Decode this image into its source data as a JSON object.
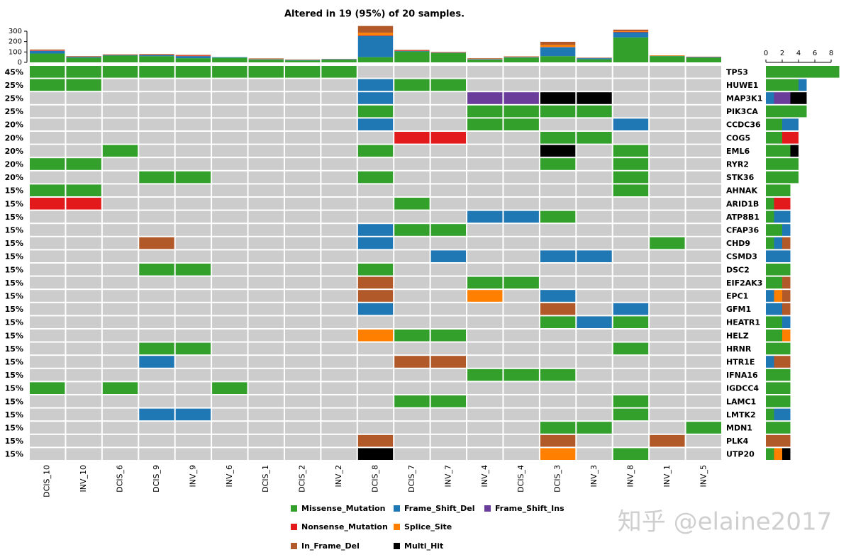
{
  "chart_data": {
    "type": "oncoplot",
    "title": "Altered in 19 (95%) of 20 samples.",
    "samples": [
      "DCIS_10",
      "INV_10",
      "DCIS_6",
      "DCIS_9",
      "INV_9",
      "INV_6",
      "DCIS_1",
      "DCIS_2",
      "INV_2",
      "DCIS_8",
      "DCIS_7",
      "INV_7",
      "INV_4",
      "DCIS_4",
      "DCIS_3",
      "INV_3",
      "INV_8",
      "INV_1",
      "INV_5"
    ],
    "genes": [
      "TP53",
      "HUWE1",
      "MAP3K1",
      "PIK3CA",
      "CCDC36",
      "COG5",
      "EML6",
      "RYR2",
      "STK36",
      "AHNAK",
      "ARID1B",
      "ATP8B1",
      "CFAP36",
      "CHD9",
      "CSMD3",
      "DSC2",
      "EIF2AK3",
      "EPC1",
      "GFM1",
      "HEATR1",
      "HELZ",
      "HRNR",
      "HTR1E",
      "IFNA16",
      "IGDCC4",
      "LAMC1",
      "LMTK2",
      "MDN1",
      "PLK4",
      "UTP20"
    ],
    "gene_percent": [
      45,
      25,
      25,
      25,
      20,
      20,
      20,
      20,
      20,
      15,
      15,
      15,
      15,
      15,
      15,
      15,
      15,
      15,
      15,
      15,
      15,
      15,
      15,
      15,
      15,
      15,
      15,
      15,
      15,
      15
    ],
    "gene_percent_labels": [
      "45%",
      "25%",
      "25%",
      "25%",
      "20%",
      "20%",
      "20%",
      "20%",
      "20%",
      "15%",
      "15%",
      "15%",
      "15%",
      "15%",
      "15%",
      "15%",
      "15%",
      "15%",
      "15%",
      "15%",
      "15%",
      "15%",
      "15%",
      "15%",
      "15%",
      "15%",
      "15%",
      "15%",
      "15%",
      "15%"
    ],
    "variant_types": [
      {
        "name": "Missense_Mutation",
        "color": "#33a02c"
      },
      {
        "name": "Frame_Shift_Del",
        "color": "#1f78b4"
      },
      {
        "name": "Frame_Shift_Ins",
        "color": "#6a3d9a"
      },
      {
        "name": "Nonsense_Mutation",
        "color": "#e31a1c"
      },
      {
        "name": "Splice_Site",
        "color": "#ff7f00"
      },
      {
        "name": "In_Frame_Del",
        "color": "#b15928"
      },
      {
        "name": "Multi_Hit",
        "color": "#000000"
      }
    ],
    "empty_color": "#cccccc",
    "matrix": [
      [
        0,
        0,
        0,
        0,
        0,
        0,
        0,
        0,
        0,
        null,
        null,
        null,
        null,
        null,
        null,
        null,
        null,
        null,
        null
      ],
      [
        0,
        0,
        null,
        null,
        null,
        null,
        null,
        null,
        null,
        1,
        0,
        0,
        null,
        null,
        null,
        null,
        null,
        null,
        null
      ],
      [
        null,
        null,
        null,
        null,
        null,
        null,
        null,
        null,
        null,
        1,
        null,
        null,
        2,
        2,
        6,
        6,
        null,
        null,
        null
      ],
      [
        null,
        null,
        null,
        null,
        null,
        null,
        null,
        null,
        null,
        0,
        null,
        null,
        0,
        0,
        0,
        0,
        null,
        null,
        null
      ],
      [
        null,
        null,
        null,
        null,
        null,
        null,
        null,
        null,
        null,
        1,
        null,
        null,
        0,
        0,
        null,
        null,
        1,
        null,
        null
      ],
      [
        null,
        null,
        null,
        null,
        null,
        null,
        null,
        null,
        null,
        null,
        3,
        3,
        null,
        null,
        0,
        0,
        null,
        null,
        null
      ],
      [
        null,
        null,
        0,
        null,
        null,
        null,
        null,
        null,
        null,
        0,
        null,
        null,
        null,
        null,
        6,
        null,
        0,
        null,
        null
      ],
      [
        0,
        0,
        null,
        null,
        null,
        null,
        null,
        null,
        null,
        null,
        null,
        null,
        null,
        null,
        0,
        null,
        0,
        null,
        null
      ],
      [
        null,
        null,
        null,
        0,
        0,
        null,
        null,
        null,
        null,
        0,
        null,
        null,
        null,
        null,
        null,
        null,
        0,
        null,
        null
      ],
      [
        0,
        0,
        null,
        null,
        null,
        null,
        null,
        null,
        null,
        null,
        null,
        null,
        null,
        null,
        null,
        null,
        0,
        null,
        null
      ],
      [
        3,
        3,
        null,
        null,
        null,
        null,
        null,
        null,
        null,
        null,
        0,
        null,
        null,
        null,
        null,
        null,
        null,
        null,
        null
      ],
      [
        null,
        null,
        null,
        null,
        null,
        null,
        null,
        null,
        null,
        null,
        null,
        null,
        1,
        1,
        0,
        null,
        null,
        null,
        null
      ],
      [
        null,
        null,
        null,
        null,
        null,
        null,
        null,
        null,
        null,
        1,
        0,
        0,
        null,
        null,
        null,
        null,
        null,
        null,
        null
      ],
      [
        null,
        null,
        null,
        5,
        null,
        null,
        null,
        null,
        null,
        1,
        null,
        null,
        null,
        null,
        null,
        null,
        null,
        0,
        null
      ],
      [
        null,
        null,
        null,
        null,
        null,
        null,
        null,
        null,
        null,
        null,
        null,
        1,
        null,
        null,
        1,
        1,
        null,
        null,
        null
      ],
      [
        null,
        null,
        null,
        0,
        0,
        null,
        null,
        null,
        null,
        0,
        null,
        null,
        null,
        null,
        null,
        null,
        null,
        null,
        null
      ],
      [
        null,
        null,
        null,
        null,
        null,
        null,
        null,
        null,
        null,
        5,
        null,
        null,
        0,
        0,
        null,
        null,
        null,
        null,
        null
      ],
      [
        null,
        null,
        null,
        null,
        null,
        null,
        null,
        null,
        null,
        5,
        null,
        null,
        4,
        null,
        1,
        null,
        null,
        null,
        null
      ],
      [
        null,
        null,
        null,
        null,
        null,
        null,
        null,
        null,
        null,
        1,
        null,
        null,
        null,
        null,
        5,
        null,
        1,
        null,
        null
      ],
      [
        null,
        null,
        null,
        null,
        null,
        null,
        null,
        null,
        null,
        null,
        null,
        null,
        null,
        null,
        0,
        1,
        0,
        null,
        null
      ],
      [
        null,
        null,
        null,
        null,
        null,
        null,
        null,
        null,
        null,
        4,
        0,
        0,
        null,
        null,
        null,
        null,
        null,
        null,
        null
      ],
      [
        null,
        null,
        null,
        0,
        0,
        null,
        null,
        null,
        null,
        null,
        null,
        null,
        null,
        null,
        null,
        null,
        0,
        null,
        null
      ],
      [
        null,
        null,
        null,
        1,
        null,
        null,
        null,
        null,
        null,
        null,
        5,
        5,
        null,
        null,
        null,
        null,
        null,
        null,
        null
      ],
      [
        null,
        null,
        null,
        null,
        null,
        null,
        null,
        null,
        null,
        null,
        null,
        null,
        0,
        0,
        0,
        null,
        null,
        null,
        null
      ],
      [
        0,
        null,
        0,
        null,
        null,
        0,
        null,
        null,
        null,
        null,
        null,
        null,
        null,
        null,
        null,
        null,
        null,
        null,
        null
      ],
      [
        null,
        null,
        null,
        null,
        null,
        null,
        null,
        null,
        null,
        null,
        0,
        0,
        null,
        null,
        null,
        null,
        0,
        null,
        null
      ],
      [
        null,
        null,
        null,
        1,
        1,
        null,
        null,
        null,
        null,
        null,
        null,
        null,
        null,
        null,
        null,
        null,
        0,
        null,
        null
      ],
      [
        null,
        null,
        null,
        null,
        null,
        null,
        null,
        null,
        null,
        null,
        null,
        null,
        null,
        null,
        0,
        0,
        null,
        null,
        0
      ],
      [
        null,
        null,
        null,
        null,
        null,
        null,
        null,
        null,
        null,
        5,
        null,
        null,
        null,
        null,
        5,
        null,
        null,
        5,
        null
      ],
      [
        null,
        null,
        null,
        null,
        null,
        null,
        null,
        null,
        null,
        6,
        null,
        null,
        null,
        null,
        4,
        null,
        0,
        null,
        null
      ]
    ],
    "tmb": [
      [
        85,
        45,
        65,
        60,
        40,
        45,
        25,
        18,
        25,
        50,
        105,
        90,
        25,
        45,
        60,
        30,
        240,
        60,
        45
      ],
      [
        25,
        8,
        5,
        10,
        20,
        5,
        5,
        5,
        5,
        205,
        5,
        3,
        5,
        5,
        85,
        10,
        50,
        3,
        5
      ],
      [
        2,
        0,
        0,
        0,
        0,
        0,
        0,
        0,
        0,
        0,
        0,
        0,
        2,
        0,
        3,
        0,
        0,
        0,
        0
      ],
      [
        3,
        2,
        2,
        2,
        5,
        0,
        0,
        0,
        0,
        5,
        5,
        2,
        0,
        0,
        0,
        0,
        5,
        0,
        0
      ],
      [
        3,
        0,
        0,
        0,
        2,
        0,
        3,
        2,
        0,
        25,
        0,
        0,
        3,
        3,
        20,
        0,
        5,
        5,
        0
      ],
      [
        6,
        5,
        5,
        8,
        5,
        0,
        5,
        3,
        3,
        65,
        5,
        5,
        5,
        5,
        30,
        5,
        15,
        0,
        5
      ],
      [
        0,
        0,
        0,
        0,
        0,
        0,
        0,
        0,
        0,
        0,
        0,
        0,
        0,
        0,
        0,
        0,
        0,
        0,
        0
      ]
    ],
    "ylim": [
      0,
      300
    ],
    "yticks": [
      0,
      100,
      200,
      300
    ],
    "gene_counts": [
      [
        9,
        0,
        0,
        0,
        0,
        0,
        0
      ],
      [
        4,
        1,
        0,
        0,
        0,
        0,
        0
      ],
      [
        0,
        1,
        2,
        0,
        0,
        0,
        2
      ],
      [
        5,
        0,
        0,
        0,
        0,
        0,
        0
      ],
      [
        2,
        2,
        0,
        0,
        0,
        0,
        0
      ],
      [
        2,
        0,
        0,
        2,
        0,
        0,
        0
      ],
      [
        3,
        0,
        0,
        0,
        0,
        0,
        1
      ],
      [
        4,
        0,
        0,
        0,
        0,
        0,
        0
      ],
      [
        4,
        0,
        0,
        0,
        0,
        0,
        0
      ],
      [
        3,
        0,
        0,
        0,
        0,
        0,
        0
      ],
      [
        1,
        0,
        0,
        2,
        0,
        0,
        0
      ],
      [
        1,
        2,
        0,
        0,
        0,
        0,
        0
      ],
      [
        2,
        1,
        0,
        0,
        0,
        0,
        0
      ],
      [
        1,
        1,
        0,
        0,
        0,
        1,
        0
      ],
      [
        0,
        3,
        0,
        0,
        0,
        0,
        0
      ],
      [
        3,
        0,
        0,
        0,
        0,
        0,
        0
      ],
      [
        2,
        0,
        0,
        0,
        0,
        1,
        0
      ],
      [
        0,
        1,
        0,
        0,
        1,
        1,
        0
      ],
      [
        0,
        2,
        0,
        0,
        0,
        1,
        0
      ],
      [
        2,
        1,
        0,
        0,
        0,
        0,
        0
      ],
      [
        2,
        0,
        0,
        0,
        1,
        0,
        0
      ],
      [
        3,
        0,
        0,
        0,
        0,
        0,
        0
      ],
      [
        0,
        1,
        0,
        0,
        0,
        2,
        0
      ],
      [
        3,
        0,
        0,
        0,
        0,
        0,
        0
      ],
      [
        3,
        0,
        0,
        0,
        0,
        0,
        0
      ],
      [
        3,
        0,
        0,
        0,
        0,
        0,
        0
      ],
      [
        1,
        2,
        0,
        0,
        0,
        0,
        0
      ],
      [
        3,
        0,
        0,
        0,
        0,
        0,
        0
      ],
      [
        0,
        0,
        0,
        0,
        0,
        3,
        0
      ],
      [
        1,
        0,
        0,
        0,
        1,
        0,
        1
      ]
    ],
    "xlim": [
      0,
      8
    ],
    "xticks": [
      0,
      2,
      4,
      6,
      8
    ],
    "watermark": "知乎 @elaine2017"
  }
}
